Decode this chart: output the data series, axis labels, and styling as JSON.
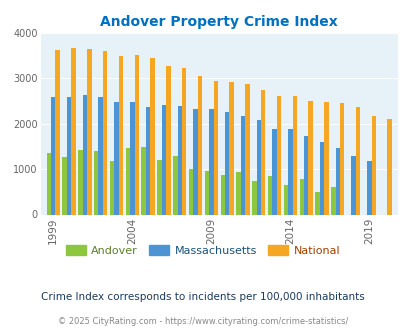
{
  "title": "Andover Property Crime Index",
  "title_color": "#0070c0",
  "subtitle": "Crime Index corresponds to incidents per 100,000 inhabitants",
  "footer": "© 2025 CityRating.com - https://www.cityrating.com/crime-statistics/",
  "years": [
    1999,
    2000,
    2001,
    2002,
    2003,
    2004,
    2005,
    2006,
    2007,
    2008,
    2009,
    2010,
    2011,
    2012,
    2013,
    2014,
    2015,
    2016,
    2017,
    2018,
    2019,
    2020
  ],
  "andover": [
    1350,
    1260,
    1420,
    1390,
    1190,
    1470,
    1490,
    1200,
    1280,
    1010,
    960,
    860,
    930,
    740,
    840,
    640,
    790,
    490,
    600,
    0,
    0,
    0
  ],
  "massachusetts": [
    2580,
    2580,
    2640,
    2600,
    2490,
    2490,
    2370,
    2410,
    2400,
    2330,
    2330,
    2260,
    2160,
    2080,
    1880,
    1890,
    1720,
    1590,
    1470,
    1280,
    1190,
    0
  ],
  "national": [
    3620,
    3660,
    3640,
    3610,
    3500,
    3510,
    3440,
    3280,
    3230,
    3050,
    2950,
    2910,
    2870,
    2740,
    2620,
    2620,
    2500,
    2490,
    2450,
    2370,
    2180,
    2100
  ],
  "andover_color": "#8dc63f",
  "massachusetts_color": "#4d94d5",
  "national_color": "#f5a623",
  "bg_color": "#e6f2f7",
  "ylim": [
    0,
    4000
  ],
  "yticks": [
    0,
    1000,
    2000,
    3000,
    4000
  ],
  "xtick_year_labels": [
    "1999",
    "2004",
    "2009",
    "2014",
    "2019"
  ],
  "xtick_years": [
    1999,
    2004,
    2009,
    2014,
    2019
  ],
  "grid_color": "#ffffff",
  "legend_labels": [
    "Andover",
    "Massachusetts",
    "National"
  ],
  "legend_label_colors": [
    "#5b7f2a",
    "#1a5276",
    "#a04000"
  ],
  "subtitle_color": "#1a3a5c",
  "footer_color": "#888888"
}
